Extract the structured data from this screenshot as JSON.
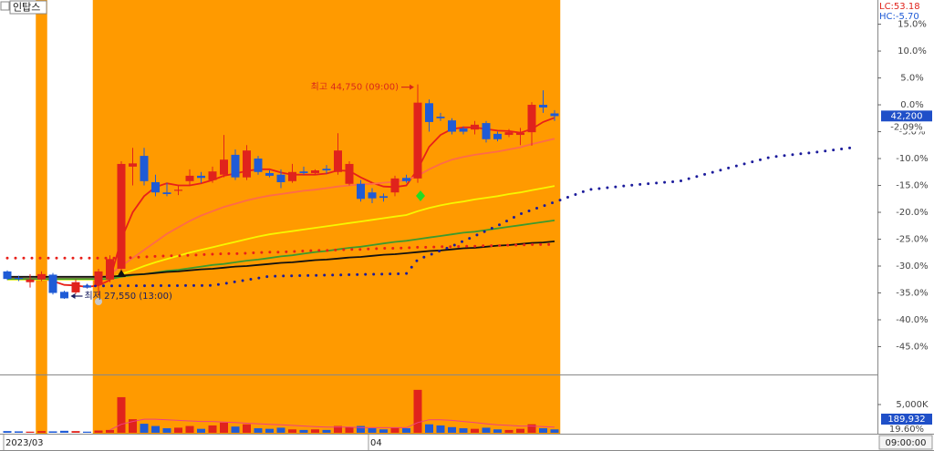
{
  "chart_data": {
    "type": "candlestick",
    "title": "인탑스",
    "lc_label": "LC:53.18",
    "hc_label": "HC:-5.70",
    "time_label": "09:00:00",
    "xlim": [
      -0.64,
      76.16
    ],
    "ylim": [
      -50,
      19.5
    ],
    "yticks": [
      {
        "value": 15,
        "label": "15.0%"
      },
      {
        "value": 10,
        "label": "10.0%"
      },
      {
        "value": 5,
        "label": "5.0%"
      },
      {
        "value": 0,
        "label": "0.0%"
      },
      {
        "value": -5,
        "label": "-5.0%"
      },
      {
        "value": -10,
        "label": "-10.0%"
      },
      {
        "value": -15,
        "label": "-15.0%"
      },
      {
        "value": -20,
        "label": "-20.0%"
      },
      {
        "value": -25,
        "label": "-25.0%"
      },
      {
        "value": -30,
        "label": "-30.0%"
      },
      {
        "value": -35,
        "label": "-35.0%"
      },
      {
        "value": -40,
        "label": "-40.0%"
      },
      {
        "value": -45,
        "label": "-45.0%"
      }
    ],
    "categories": [
      "2023/03",
      null,
      null,
      null,
      null,
      null,
      null,
      null,
      null,
      null,
      null,
      null,
      null,
      null,
      null,
      null,
      null,
      null,
      null,
      null,
      null,
      null,
      null,
      null,
      null,
      null,
      null,
      null,
      null,
      null,
      null,
      null,
      "04",
      null,
      null,
      null,
      null,
      null,
      null,
      null,
      null,
      null,
      null,
      null,
      null,
      null,
      null,
      null,
      null
    ],
    "highlight_color": "#ff9a00",
    "highlight_ranges": [
      [
        3,
        3
      ],
      [
        8,
        48
      ]
    ],
    "up_color": "#e0231c",
    "down_color": "#1f5bd6",
    "open": [
      -31.0,
      -32.2,
      -33.0,
      -32.5,
      -31.6,
      -34.8,
      -34.9,
      -33.6,
      -33.5,
      -32.5,
      -30.5,
      -11.5,
      -9.5,
      -14.4,
      -16.3,
      -16.0,
      -14.2,
      -13.2,
      -14.0,
      -13.0,
      -9.3,
      -13.5,
      -10.0,
      -12.7,
      -13.0,
      -14.2,
      -12.4,
      -12.7,
      -11.9,
      -12.5,
      -14.7,
      -14.7,
      -16.3,
      -17.0,
      -16.3,
      -13.6,
      -13.7,
      0.3,
      -2.2,
      -2.9,
      -4.4,
      -4.6,
      -3.4,
      -5.4,
      -5.6,
      -5.6,
      -5.1,
      0.0,
      -1.6
    ],
    "high": [
      -30.8,
      -31.8,
      -31.5,
      -31.0,
      -31.3,
      -34.6,
      -32.5,
      -33.3,
      -30.5,
      -28.0,
      -10.5,
      -8.0,
      -8.0,
      -13.0,
      -14.5,
      -15.0,
      -12.0,
      -12.5,
      -11.5,
      -5.6,
      -8.3,
      -7.5,
      -9.5,
      -12.2,
      -12.0,
      -11.0,
      -11.5,
      -12.0,
      -11.2,
      -5.3,
      -10.5,
      -14.0,
      -15.5,
      -16.5,
      -13.2,
      -13.0,
      3.8,
      1.0,
      -1.5,
      -2.5,
      -4.0,
      -3.0,
      -3.0,
      -5.0,
      -4.5,
      -4.3,
      0.5,
      2.7,
      -1.0
    ],
    "low": [
      -32.6,
      -32.8,
      -34.0,
      -32.8,
      -35.3,
      -36.1,
      -35.2,
      -34.2,
      -35.5,
      -33.0,
      -31.0,
      -15.0,
      -15.0,
      -17.0,
      -17.0,
      -16.8,
      -15.0,
      -14.5,
      -14.5,
      -13.5,
      -14.0,
      -14.0,
      -13.0,
      -13.5,
      -15.5,
      -14.5,
      -13.0,
      -13.0,
      -12.8,
      -13.0,
      -15.0,
      -18.0,
      -18.3,
      -18.0,
      -17.0,
      -14.5,
      -14.5,
      -5.0,
      -3.0,
      -5.5,
      -5.5,
      -5.5,
      -7.0,
      -6.8,
      -6.0,
      -7.5,
      -7.6,
      -1.5,
      -3.0
    ],
    "close": [
      -32.4,
      -32.4,
      -32.5,
      -31.5,
      -35.0,
      -36.0,
      -33.0,
      -34.0,
      -31.0,
      -28.7,
      -11.0,
      -10.9,
      -14.2,
      -16.3,
      -16.6,
      -15.8,
      -13.2,
      -13.6,
      -12.4,
      -10.2,
      -13.5,
      -8.5,
      -12.5,
      -13.2,
      -14.4,
      -12.5,
      -12.7,
      -12.2,
      -12.2,
      -8.5,
      -11.0,
      -17.5,
      -17.4,
      -17.3,
      -13.7,
      -14.2,
      0.4,
      -3.2,
      -2.5,
      -5.0,
      -5.0,
      -3.7,
      -6.4,
      -6.4,
      -5.1,
      -5.2,
      0.0,
      -0.5,
      -2.1
    ],
    "series": [
      {
        "color": "#e8201a",
        "style": "solid",
        "values": [
          -32.3,
          -32.3,
          -32.4,
          -32.3,
          -32.8,
          -33.5,
          -33.6,
          -33.9,
          -33.6,
          -32.6,
          -25.0,
          -20.0,
          -17.0,
          -15.3,
          -14.6,
          -15.0,
          -15.0,
          -14.6,
          -14.0,
          -13.2,
          -12.8,
          -12.3,
          -12.0,
          -12.0,
          -12.6,
          -13.0,
          -13.0,
          -13.0,
          -12.8,
          -12.2,
          -12.3,
          -13.5,
          -14.5,
          -15.2,
          -15.3,
          -15.0,
          -12.0,
          -7.8,
          -5.6,
          -4.5,
          -4.2,
          -4.2,
          -4.5,
          -4.8,
          -4.9,
          -5.2,
          -4.5,
          -3.2,
          -2.4
        ]
      },
      {
        "color": "#ff6a4a",
        "style": "solid",
        "values": [
          -32.3,
          -32.3,
          -32.3,
          -32.3,
          -32.3,
          -32.3,
          -32.3,
          -32.3,
          -32.3,
          -31.5,
          -30.0,
          -28.5,
          -27.0,
          -25.5,
          -24.0,
          -22.8,
          -21.6,
          -20.6,
          -19.8,
          -19.0,
          -18.4,
          -17.8,
          -17.3,
          -16.9,
          -16.6,
          -16.3,
          -16.0,
          -15.8,
          -15.5,
          -15.2,
          -15.0,
          -14.8,
          -14.7,
          -14.5,
          -14.3,
          -14.0,
          -13.2,
          -12.0,
          -11.0,
          -10.2,
          -9.7,
          -9.3,
          -9.0,
          -8.7,
          -8.3,
          -7.9,
          -7.3,
          -6.8,
          -6.3
        ]
      },
      {
        "color": "#f7f700",
        "style": "solid",
        "values": [
          -32.5,
          -32.5,
          -32.5,
          -32.5,
          -32.5,
          -32.5,
          -32.5,
          -32.5,
          -32.5,
          -32.2,
          -31.5,
          -30.8,
          -30.0,
          -29.3,
          -28.7,
          -28.1,
          -27.5,
          -27.0,
          -26.5,
          -26.0,
          -25.5,
          -25.0,
          -24.5,
          -24.1,
          -23.8,
          -23.5,
          -23.2,
          -22.9,
          -22.6,
          -22.3,
          -22.0,
          -21.7,
          -21.4,
          -21.1,
          -20.8,
          -20.5,
          -19.8,
          -19.2,
          -18.7,
          -18.3,
          -18.0,
          -17.6,
          -17.3,
          -17.0,
          -16.6,
          -16.3,
          -15.9,
          -15.5,
          -15.1
        ]
      },
      {
        "color": "#3c9a2e",
        "style": "solid",
        "values": [
          -32.4,
          -32.4,
          -32.4,
          -32.4,
          -32.4,
          -32.4,
          -32.4,
          -32.4,
          -32.4,
          -32.4,
          -32.0,
          -31.7,
          -31.5,
          -31.2,
          -30.9,
          -30.7,
          -30.4,
          -30.1,
          -29.8,
          -29.6,
          -29.3,
          -29.0,
          -28.8,
          -28.5,
          -28.2,
          -28.0,
          -27.7,
          -27.4,
          -27.2,
          -26.9,
          -26.6,
          -26.4,
          -26.1,
          -25.8,
          -25.5,
          -25.3,
          -25.0,
          -24.7,
          -24.4,
          -24.1,
          -23.8,
          -23.6,
          -23.3,
          -23.0,
          -22.7,
          -22.4,
          -22.1,
          -21.8,
          -21.5
        ]
      },
      {
        "color": "#111111",
        "style": "solid",
        "values": [
          -32.0,
          -32.0,
          -32.0,
          -32.0,
          -32.0,
          -32.0,
          -32.0,
          -32.0,
          -32.0,
          -32.0,
          -31.8,
          -31.6,
          -31.5,
          -31.3,
          -31.1,
          -31.0,
          -30.8,
          -30.6,
          -30.5,
          -30.3,
          -30.1,
          -30.0,
          -29.8,
          -29.6,
          -29.4,
          -29.3,
          -29.1,
          -28.9,
          -28.8,
          -28.6,
          -28.4,
          -28.3,
          -28.1,
          -27.9,
          -27.8,
          -27.6,
          -27.4,
          -27.2,
          -27.1,
          -26.9,
          -26.7,
          -26.6,
          -26.4,
          -26.2,
          -26.1,
          -25.9,
          -25.7,
          -25.6,
          -25.4
        ]
      },
      {
        "color": "#e8201a",
        "style": "dotted",
        "values": [
          -28.5,
          -28.5,
          -28.5,
          -28.5,
          -28.5,
          -28.5,
          -28.5,
          -28.5,
          -28.5,
          -28.5,
          -28.5,
          -28.4,
          -28.3,
          -28.2,
          -28.1,
          -28.1,
          -28.0,
          -27.9,
          -27.8,
          -27.7,
          -27.7,
          -27.6,
          -27.5,
          -27.4,
          -27.4,
          -27.3,
          -27.2,
          -27.1,
          -27.1,
          -27.0,
          -26.9,
          -26.9,
          -26.8,
          -26.7,
          -26.7,
          -26.6,
          -26.5,
          -26.5,
          -26.4,
          -26.4,
          -26.3,
          -26.3,
          -26.2,
          -26.2,
          -26.1,
          -26.1,
          -26.0,
          -26.0,
          -26.0
        ]
      },
      {
        "color": "#1c1c9c",
        "style": "dotted",
        "x": [
          7,
          18,
          23,
          35,
          36,
          39,
          43,
          45,
          48,
          51,
          55,
          59,
          63,
          67,
          71,
          74
        ],
        "values": [
          -33.7,
          -33.6,
          -31.9,
          -31.4,
          -28.8,
          -26.3,
          -22.5,
          -20.3,
          -18.1,
          -15.8,
          -14.9,
          -14.2,
          -11.9,
          -9.7,
          -8.8,
          -8.0
        ]
      }
    ],
    "annotations": [
      {
        "text": "최고 44,750 (09:00)",
        "index": 36,
        "value": 3.8,
        "color": "#d8281c"
      },
      {
        "text": "최저 27,550 (13:00)",
        "index": 5,
        "value": -36.1,
        "color": "#1c2060"
      }
    ],
    "last": {
      "price_label": "42,200",
      "value": -2.09,
      "value_label": "-2.09%"
    },
    "volume": {
      "ylim": [
        0,
        10160
      ],
      "yticks": [
        {
          "value": 5000,
          "label": "5,000K"
        }
      ],
      "values": [
        300,
        250,
        200,
        300,
        250,
        350,
        300,
        200,
        400,
        500,
        6300,
        2400,
        1600,
        1200,
        800,
        900,
        1200,
        700,
        1300,
        1800,
        1100,
        1500,
        800,
        700,
        900,
        600,
        500,
        600,
        500,
        1200,
        1000,
        1200,
        800,
        600,
        900,
        800,
        7600,
        1500,
        1300,
        1000,
        800,
        700,
        900,
        600,
        500,
        700,
        1500,
        800,
        600
      ],
      "ma_color": "#f04080",
      "ma": [
        null,
        null,
        null,
        null,
        null,
        null,
        null,
        null,
        null,
        500,
        1500,
        2000,
        2400,
        2400,
        2300,
        2200,
        2100,
        2000,
        2000,
        1900,
        1800,
        1700,
        1600,
        1500,
        1400,
        1300,
        1200,
        1100,
        1000,
        1000,
        1000,
        900,
        900,
        900,
        900,
        900,
        1800,
        2300,
        2300,
        2200,
        2000,
        1800,
        1600,
        1400,
        1300,
        1200,
        1200,
        1100,
        1000
      ],
      "last_label": "189,932",
      "last_pct_label": "19.60%"
    }
  }
}
